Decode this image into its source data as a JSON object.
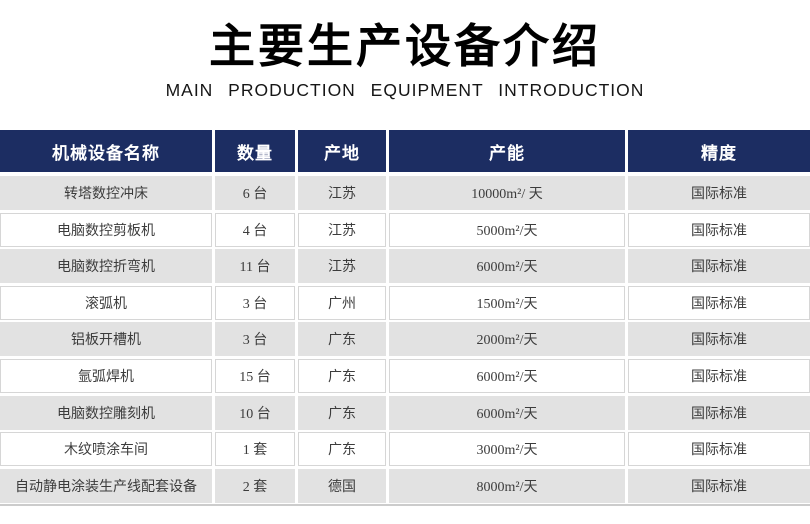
{
  "header": {
    "title": "主要生产设备介绍",
    "subtitle": "MAIN PRODUCTION EQUIPMENT INTRODUCTION"
  },
  "table": {
    "columns": [
      "机械设备名称",
      "数量",
      "产地",
      "产能",
      "精度"
    ],
    "rows": [
      [
        "转塔数控冲床",
        "6 台",
        "江苏",
        "10000m²/ 天",
        "国际标准"
      ],
      [
        "电脑数控剪板机",
        "4 台",
        "江苏",
        "5000m²/天",
        "国际标准"
      ],
      [
        "电脑数控折弯机",
        "11 台",
        "江苏",
        "6000m²/天",
        "国际标准"
      ],
      [
        "滚弧机",
        "3 台",
        "广州",
        "1500m²/天",
        "国际标准"
      ],
      [
        "铝板开槽机",
        "3 台",
        "广东",
        "2000m²/天",
        "国际标准"
      ],
      [
        "氩弧焊机",
        "15 台",
        "广东",
        "6000m²/天",
        "国际标准"
      ],
      [
        "电脑数控雕刻机",
        "10 台",
        "广东",
        "6000m²/天",
        "国际标准"
      ],
      [
        "木纹喷涂车间",
        "1 套",
        "广东",
        "3000m²/天",
        "国际标准"
      ],
      [
        "自动静电涂装生产线配套设备",
        "2 套",
        "德国",
        "8000m²/天",
        "国际标准"
      ]
    ]
  },
  "colors": {
    "header_bg": "#1c2d62",
    "header_text": "#ffffff",
    "alt_row_bg": "#e2e2e2",
    "body_text": "#3c3c3c",
    "row_border": "#d6d6d6"
  }
}
